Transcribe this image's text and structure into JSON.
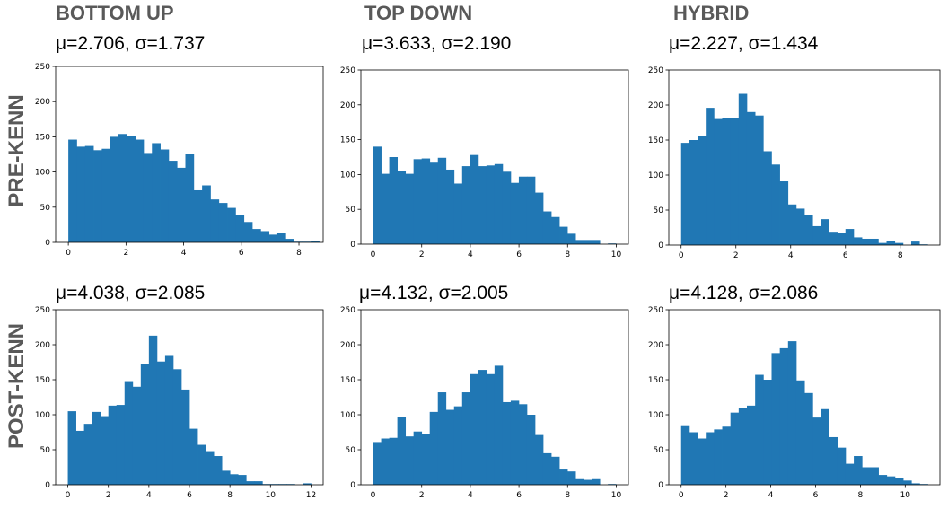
{
  "column_titles": [
    "BOTTOM UP",
    "TOP DOWN",
    "HYBRID"
  ],
  "row_labels": [
    "PRE-KENN",
    "POST-KENN"
  ],
  "colors": {
    "bar": "#2077b4",
    "heading": "#595959"
  },
  "chart_data": [
    {
      "type": "bar",
      "label": "μ=2.706, σ=1.737",
      "xlim": [
        -0.44,
        8.84
      ],
      "ylim": [
        0,
        250
      ],
      "xticks": [
        0,
        2,
        4,
        6,
        8
      ],
      "yticks": [
        0,
        50,
        100,
        150,
        200,
        250
      ],
      "bin_start": 0,
      "bin_width": 0.29,
      "values": [
        146,
        136,
        137,
        131,
        133,
        150,
        154,
        151,
        146,
        127,
        141,
        132,
        116,
        106,
        126,
        74,
        81,
        61,
        56,
        49,
        39,
        29,
        19,
        16,
        11,
        13,
        5,
        1,
        1,
        2
      ]
    },
    {
      "type": "bar",
      "label": "μ=3.633, σ=2.190",
      "xlim": [
        -0.5,
        10.5
      ],
      "ylim": [
        0,
        250
      ],
      "xticks": [
        0,
        2,
        4,
        6,
        8,
        10
      ],
      "yticks": [
        0,
        50,
        100,
        150,
        200,
        250
      ],
      "bin_start": 0,
      "bin_width": 0.333,
      "values": [
        140,
        101,
        125,
        105,
        101,
        122,
        123,
        117,
        124,
        107,
        87,
        112,
        128,
        112,
        113,
        115,
        104,
        88,
        97,
        97,
        74,
        47,
        39,
        25,
        15,
        6,
        6,
        6,
        0,
        1
      ]
    },
    {
      "type": "bar",
      "label": "μ=2.227, σ=1.434",
      "xlim": [
        -0.45,
        9.45
      ],
      "ylim": [
        0,
        250
      ],
      "xticks": [
        0,
        2,
        4,
        6,
        8
      ],
      "yticks": [
        0,
        50,
        100,
        150,
        200,
        250
      ],
      "bin_start": 0,
      "bin_width": 0.3,
      "values": [
        146,
        150,
        156,
        196,
        180,
        182,
        182,
        216,
        190,
        185,
        134,
        115,
        91,
        58,
        52,
        43,
        27,
        37,
        19,
        17,
        23,
        11,
        9,
        9,
        3,
        6,
        3,
        0,
        5,
        1
      ]
    },
    {
      "type": "bar",
      "label": "μ=4.038, σ=2.085",
      "xlim": [
        -0.6,
        12.6
      ],
      "ylim": [
        0,
        250
      ],
      "xticks": [
        0,
        2,
        4,
        6,
        8,
        10,
        12
      ],
      "yticks": [
        0,
        50,
        100,
        150,
        200,
        250
      ],
      "bin_start": 0,
      "bin_width": 0.4,
      "values": [
        105,
        77,
        87,
        104,
        98,
        113,
        114,
        148,
        140,
        173,
        213,
        176,
        184,
        165,
        136,
        80,
        57,
        48,
        41,
        20,
        15,
        14,
        5,
        5,
        1,
        1,
        1,
        1,
        0,
        2
      ]
    },
    {
      "type": "bar",
      "label": "μ=4.132, σ=2.005",
      "xlim": [
        -0.5,
        10.5
      ],
      "ylim": [
        0,
        250
      ],
      "xticks": [
        0,
        2,
        4,
        6,
        8,
        10
      ],
      "yticks": [
        0,
        50,
        100,
        150,
        200,
        250
      ],
      "bin_start": 0,
      "bin_width": 0.333,
      "values": [
        61,
        66,
        67,
        97,
        69,
        76,
        73,
        104,
        132,
        107,
        112,
        132,
        158,
        164,
        158,
        170,
        118,
        120,
        115,
        100,
        71,
        45,
        40,
        23,
        19,
        8,
        7,
        8,
        0,
        1
      ]
    },
    {
      "type": "bar",
      "label": "μ=4.128, σ=2.086",
      "xlim": [
        -0.55,
        11.55
      ],
      "ylim": [
        0,
        250
      ],
      "xticks": [
        0,
        2,
        4,
        6,
        8,
        10
      ],
      "yticks": [
        0,
        50,
        100,
        150,
        200,
        250
      ],
      "bin_start": 0,
      "bin_width": 0.367,
      "values": [
        85,
        75,
        66,
        75,
        79,
        83,
        103,
        110,
        113,
        157,
        150,
        188,
        195,
        205,
        149,
        131,
        96,
        108,
        68,
        53,
        30,
        41,
        25,
        25,
        14,
        12,
        9,
        6,
        2,
        1
      ]
    }
  ]
}
